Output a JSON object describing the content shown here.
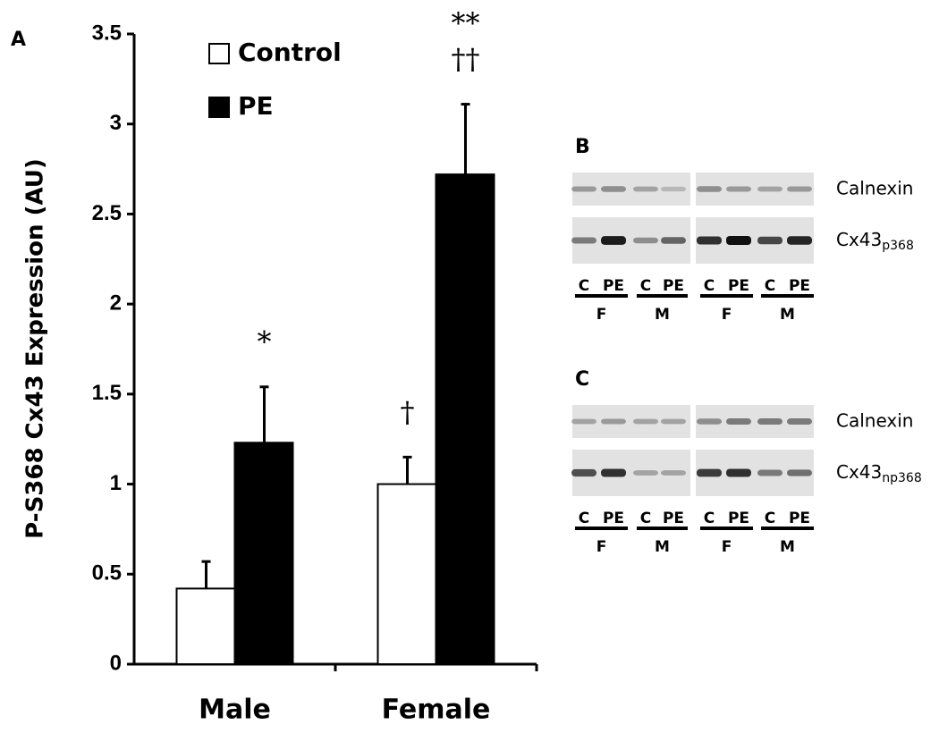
{
  "chart_data": {
    "type": "bar",
    "panel_label": "A",
    "y_label": "P-S368 Cx43 Expression (AU)",
    "categories": [
      "Male",
      "Female"
    ],
    "series": [
      {
        "name": "Control",
        "color": "#ffffff",
        "values": [
          0.42,
          1.0
        ],
        "errors": [
          0.15,
          0.15
        ],
        "annotations": [
          [],
          [
            "†"
          ]
        ]
      },
      {
        "name": "PE",
        "color": "#000000",
        "values": [
          1.23,
          2.72
        ],
        "errors": [
          0.31,
          0.39
        ],
        "annotations": [
          [
            "*"
          ],
          [
            "**",
            "††"
          ]
        ]
      }
    ],
    "ylim": [
      0,
      3.5
    ],
    "yticks": [
      0,
      0.5,
      1,
      1.5,
      2,
      2.5,
      3,
      3.5
    ],
    "grid": false,
    "legend": "top-left"
  },
  "blots": [
    {
      "label": "B",
      "rows": [
        {
          "name": "Calnexin"
        },
        {
          "name": "Cx43",
          "sub": "p368"
        }
      ],
      "lanes": [
        "C",
        "PE",
        "C",
        "PE",
        "C",
        "PE",
        "C",
        "PE"
      ],
      "groups": [
        "F",
        "M",
        "F",
        "M"
      ]
    },
    {
      "label": "C",
      "rows": [
        {
          "name": "Calnexin"
        },
        {
          "name": "Cx43",
          "sub": "np368"
        }
      ],
      "lanes": [
        "C",
        "PE",
        "C",
        "PE",
        "C",
        "PE",
        "C",
        "PE"
      ],
      "groups": [
        "F",
        "M",
        "F",
        "M"
      ]
    }
  ]
}
